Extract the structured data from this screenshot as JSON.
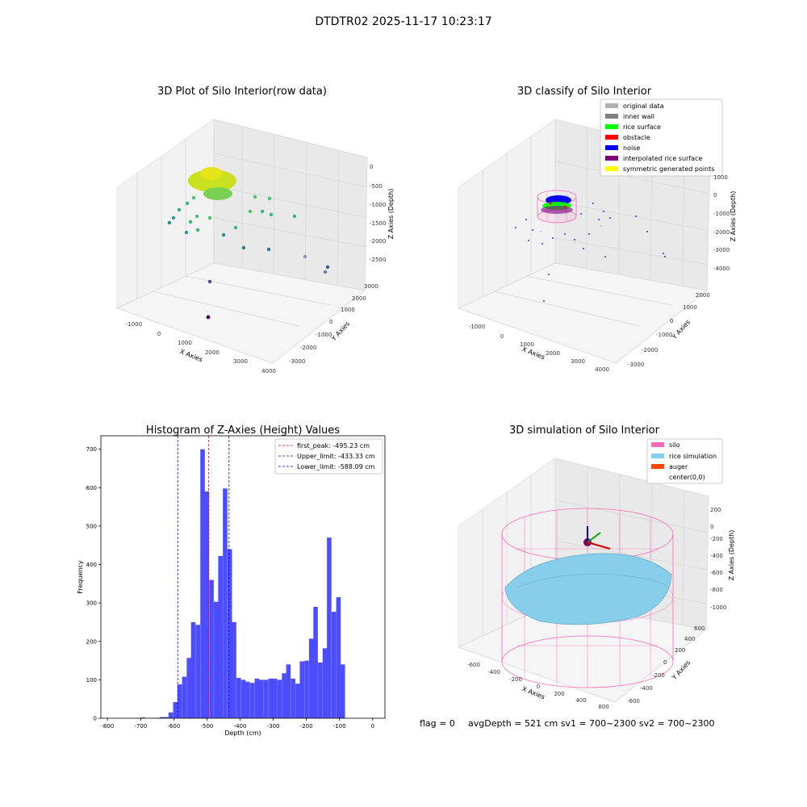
{
  "suptitle": "DTDTR02 2025-11-17 10:23:17",
  "footer": {
    "flag": "flag = 0",
    "summary": "avgDepth = 521 cm  sv1 = 700~2300  sv2 = 700~2300"
  },
  "chart_data": [
    {
      "type": "scatter",
      "projection": "3d",
      "title": "3D Plot of Silo Interior(row data)",
      "xlabel": "X Axies",
      "ylabel": "Y Axies",
      "zlabel": "Z Axies (Depth)",
      "x_ticks": [
        "-1000",
        "0",
        "1000",
        "2000",
        "3000",
        "4000"
      ],
      "y_ticks": [
        "-3000",
        "-2000",
        "-1000",
        "0",
        "1000",
        "2000",
        "3000"
      ],
      "z_ticks": [
        "-2500",
        "-2000",
        "-1500",
        "-1000",
        "-500",
        "0"
      ],
      "colormap": "viridis",
      "point_color": "#8fd744",
      "legend": null
    },
    {
      "type": "scatter",
      "projection": "3d",
      "title": "3D classify of Silo Interior",
      "xlabel": "X Axies",
      "ylabel": "Y Axies",
      "zlabel": "Z Axies (Depth)",
      "x_ticks": [
        "-1000",
        "0",
        "1000",
        "2000",
        "3000",
        "4000"
      ],
      "y_ticks": [
        "-3000",
        "-2000",
        "-1000",
        "0",
        "1000",
        "2000"
      ],
      "z_ticks": [
        "-4000",
        "-3000",
        "-2000",
        "-1000",
        "0",
        "1000"
      ],
      "legend_position": "top-right",
      "legend": [
        {
          "label": "original data",
          "color": "#b0b0b0"
        },
        {
          "label": "inner wall",
          "color": "#808080"
        },
        {
          "label": "rice surface",
          "color": "#00ff00"
        },
        {
          "label": "obstacle",
          "color": "#ff0000"
        },
        {
          "label": "noise",
          "color": "#0000ff"
        },
        {
          "label": "interpolated rice surface",
          "color": "#800080"
        },
        {
          "label": "symmetric generated points",
          "color": "#ffff00"
        }
      ]
    },
    {
      "type": "histogram",
      "title": "Histogram of Z-Axies (Height) Values",
      "xlabel": "Depth (cm)",
      "ylabel": "Frequency",
      "xlim": [
        -820,
        37
      ],
      "ylim": [
        0,
        735
      ],
      "x_ticks": [
        -800,
        -700,
        -600,
        -500,
        -400,
        -300,
        -200,
        -100,
        0
      ],
      "y_ticks": [
        0,
        100,
        200,
        300,
        400,
        500,
        600,
        700
      ],
      "bar_color": "#4d4dff",
      "bin_width": 13.6,
      "bins": [
        {
          "x": -700,
          "count": 2
        },
        {
          "x": -671,
          "count": 1
        },
        {
          "x": -657,
          "count": 1
        },
        {
          "x": -643,
          "count": 3
        },
        {
          "x": -630,
          "count": 3
        },
        {
          "x": -616,
          "count": 15
        },
        {
          "x": -602,
          "count": 42
        },
        {
          "x": -589,
          "count": 88
        },
        {
          "x": -575,
          "count": 108
        },
        {
          "x": -561,
          "count": 157
        },
        {
          "x": -548,
          "count": 250
        },
        {
          "x": -534,
          "count": 243
        },
        {
          "x": -520,
          "count": 700
        },
        {
          "x": -507,
          "count": 590
        },
        {
          "x": -493,
          "count": 360
        },
        {
          "x": -479,
          "count": 303
        },
        {
          "x": -466,
          "count": 422
        },
        {
          "x": -452,
          "count": 598
        },
        {
          "x": -438,
          "count": 440
        },
        {
          "x": -425,
          "count": 250
        },
        {
          "x": -411,
          "count": 105
        },
        {
          "x": -397,
          "count": 100
        },
        {
          "x": -384,
          "count": 95
        },
        {
          "x": -370,
          "count": 92
        },
        {
          "x": -356,
          "count": 103
        },
        {
          "x": -343,
          "count": 100
        },
        {
          "x": -329,
          "count": 100
        },
        {
          "x": -315,
          "count": 103
        },
        {
          "x": -302,
          "count": 103
        },
        {
          "x": -288,
          "count": 100
        },
        {
          "x": -274,
          "count": 117
        },
        {
          "x": -261,
          "count": 140
        },
        {
          "x": -247,
          "count": 103
        },
        {
          "x": -233,
          "count": 90
        },
        {
          "x": -220,
          "count": 148
        },
        {
          "x": -206,
          "count": 150
        },
        {
          "x": -192,
          "count": 207
        },
        {
          "x": -179,
          "count": 290
        },
        {
          "x": -165,
          "count": 145
        },
        {
          "x": -151,
          "count": 182
        },
        {
          "x": -138,
          "count": 470
        },
        {
          "x": -124,
          "count": 277
        },
        {
          "x": -110,
          "count": 315
        },
        {
          "x": -97,
          "count": 140
        }
      ],
      "vlines": [
        {
          "x": -495.23,
          "label": "first_peak: -495.23 cm",
          "color": "#ff0000"
        },
        {
          "x": -433.33,
          "label": "Upper_limit: -433.33 cm",
          "color": "#0000ff"
        },
        {
          "x": -588.09,
          "label": "Lower_limit: -588.09 cm",
          "color": "#0000ff"
        }
      ],
      "legend_position": "top-right"
    },
    {
      "type": "surface",
      "projection": "3d",
      "title": "3D simulation of Silo Interior",
      "xlabel": "X Axies",
      "ylabel": "Y Axies",
      "zlabel": "Z Axies (Depth)",
      "x_ticks": [
        "-600",
        "-400",
        "-200",
        "0",
        "200",
        "400",
        "600"
      ],
      "y_ticks": [
        "-600",
        "-400",
        "-200",
        "0",
        "200",
        "400",
        "600"
      ],
      "z_ticks": [
        "-1000",
        "-800",
        "-600",
        "-400",
        "-200",
        "0",
        "200"
      ],
      "legend_position": "top-right",
      "legend": [
        {
          "label": "silo",
          "color": "#ff69b4"
        },
        {
          "label": "rice simulation",
          "color": "#87ceeb"
        },
        {
          "label": "auger",
          "color": "#ff4500"
        },
        {
          "label": "center(0,0)",
          "color": "#ffffff"
        }
      ]
    }
  ]
}
